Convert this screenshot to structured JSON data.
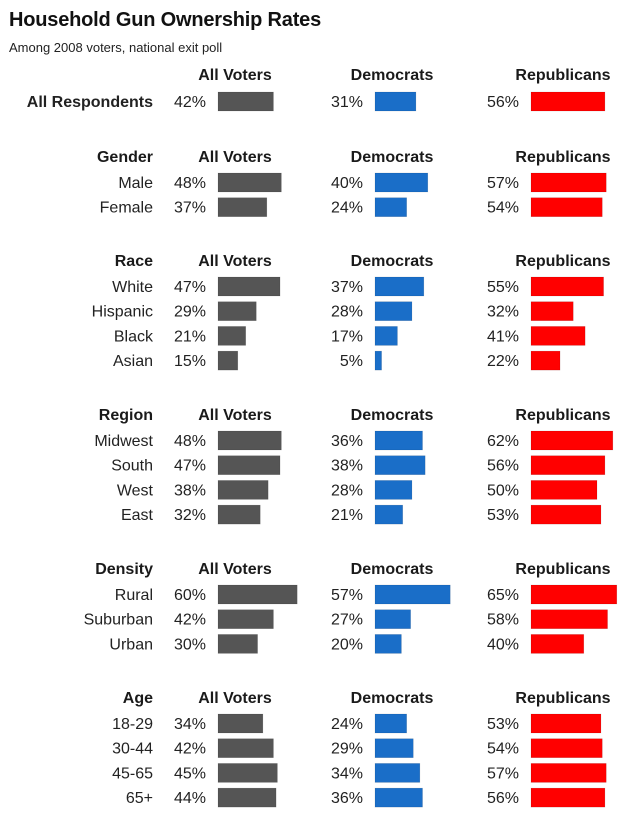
{
  "chart_data": {
    "type": "bar",
    "title": "Household Gun Ownership Rates",
    "subtitle": "Among 2008 voters, national exit poll",
    "series_names": [
      "All Voters",
      "Democrats",
      "Republicans"
    ],
    "colors": {
      "All Voters": "#555555",
      "Democrats": "#1a6ec8",
      "Republicans": "#ff0000"
    },
    "unit": "%",
    "xlim": [
      0,
      100
    ],
    "groups": [
      {
        "name": "",
        "label_bold": true,
        "rows": [
          {
            "category": "All Respondents",
            "values": [
              42,
              31,
              56
            ]
          }
        ]
      },
      {
        "name": "Gender",
        "rows": [
          {
            "category": "Male",
            "values": [
              48,
              40,
              57
            ]
          },
          {
            "category": "Female",
            "values": [
              37,
              24,
              54
            ]
          }
        ]
      },
      {
        "name": "Race",
        "rows": [
          {
            "category": "White",
            "values": [
              47,
              37,
              55
            ]
          },
          {
            "category": "Hispanic",
            "values": [
              29,
              28,
              32
            ]
          },
          {
            "category": "Black",
            "values": [
              21,
              17,
              41
            ]
          },
          {
            "category": "Asian",
            "values": [
              15,
              5,
              22
            ]
          }
        ]
      },
      {
        "name": "Region",
        "rows": [
          {
            "category": "Midwest",
            "values": [
              48,
              36,
              62
            ]
          },
          {
            "category": "South",
            "values": [
              47,
              38,
              56
            ]
          },
          {
            "category": "West",
            "values": [
              38,
              28,
              50
            ]
          },
          {
            "category": "East",
            "values": [
              32,
              21,
              53
            ]
          }
        ]
      },
      {
        "name": "Density",
        "rows": [
          {
            "category": "Rural",
            "values": [
              60,
              57,
              65
            ]
          },
          {
            "category": "Suburban",
            "values": [
              42,
              27,
              58
            ]
          },
          {
            "category": "Urban",
            "values": [
              30,
              20,
              40
            ]
          }
        ]
      },
      {
        "name": "Age",
        "rows": [
          {
            "category": "18-29",
            "values": [
              34,
              24,
              53
            ]
          },
          {
            "category": "30-44",
            "values": [
              42,
              29,
              54
            ]
          },
          {
            "category": "45-65",
            "values": [
              45,
              34,
              57
            ]
          },
          {
            "category": "65+",
            "values": [
              44,
              36,
              56
            ]
          }
        ]
      }
    ]
  }
}
